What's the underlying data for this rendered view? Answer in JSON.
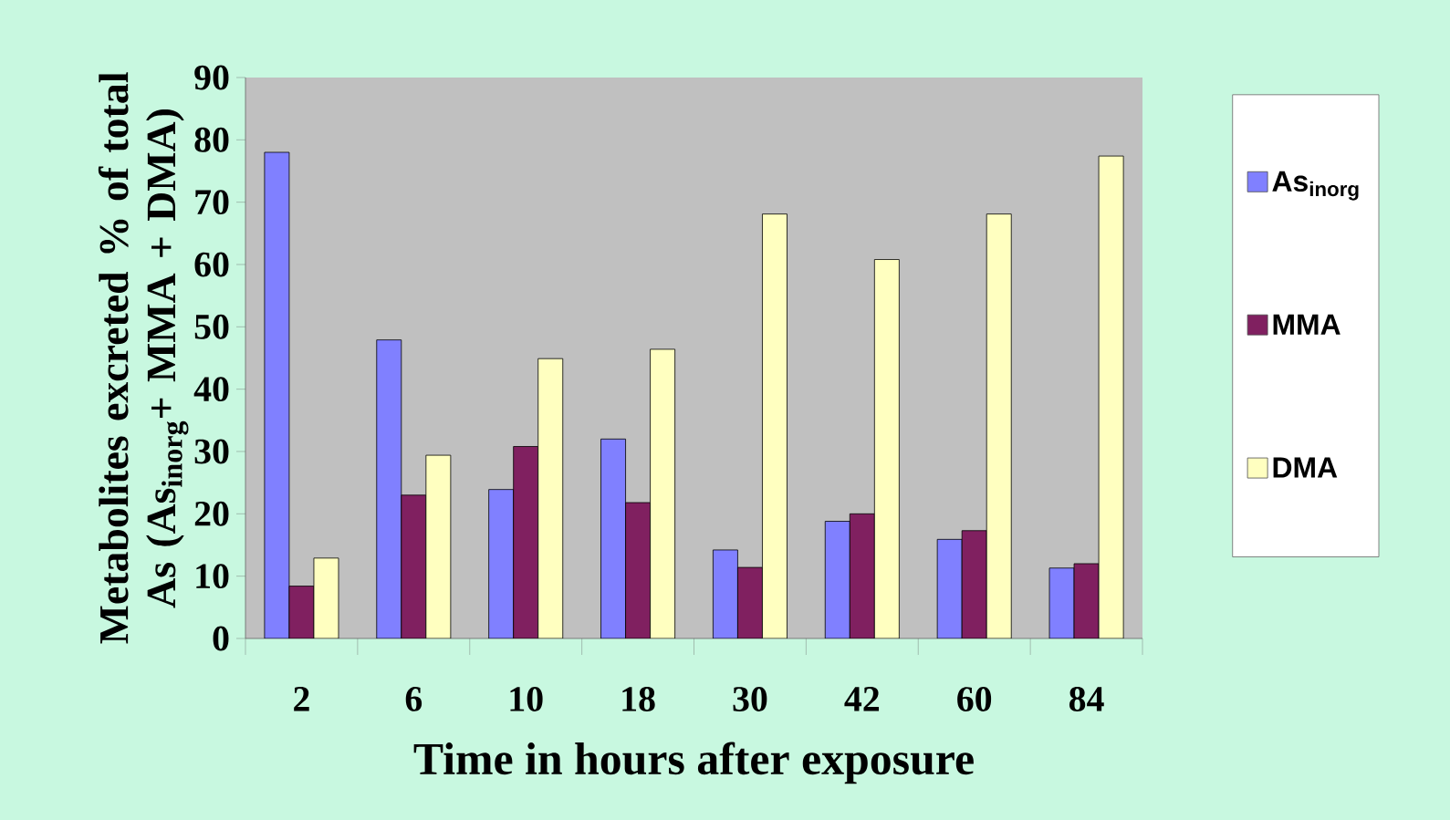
{
  "chart_data": {
    "type": "bar",
    "xlabel": "Time in hours after exposure",
    "ylabel": "Metabolites excreted % of total As (As$_{inorg}$+ MMA + DMA)",
    "categories": [
      "2",
      "6",
      "10",
      "18",
      "30",
      "42",
      "60",
      "84"
    ],
    "series": [
      {
        "name": "As$_{inorg}$",
        "color": "#8080ff",
        "values": [
          78.0,
          47.9,
          23.9,
          32.0,
          14.2,
          18.8,
          15.9,
          11.3
        ]
      },
      {
        "name": "MMA",
        "color": "#802060",
        "values": [
          8.4,
          23.0,
          30.8,
          21.8,
          11.4,
          20.0,
          17.3,
          12.0
        ]
      },
      {
        "name": "DMA",
        "color": "#ffffc0",
        "values": [
          12.9,
          29.4,
          44.9,
          46.4,
          68.1,
          60.8,
          68.1,
          77.4
        ]
      }
    ],
    "ylim": [
      0,
      90
    ],
    "yticks": [
      0,
      10,
      20,
      30,
      40,
      50,
      60,
      70,
      80,
      90
    ],
    "grid": false,
    "legend": "right"
  }
}
